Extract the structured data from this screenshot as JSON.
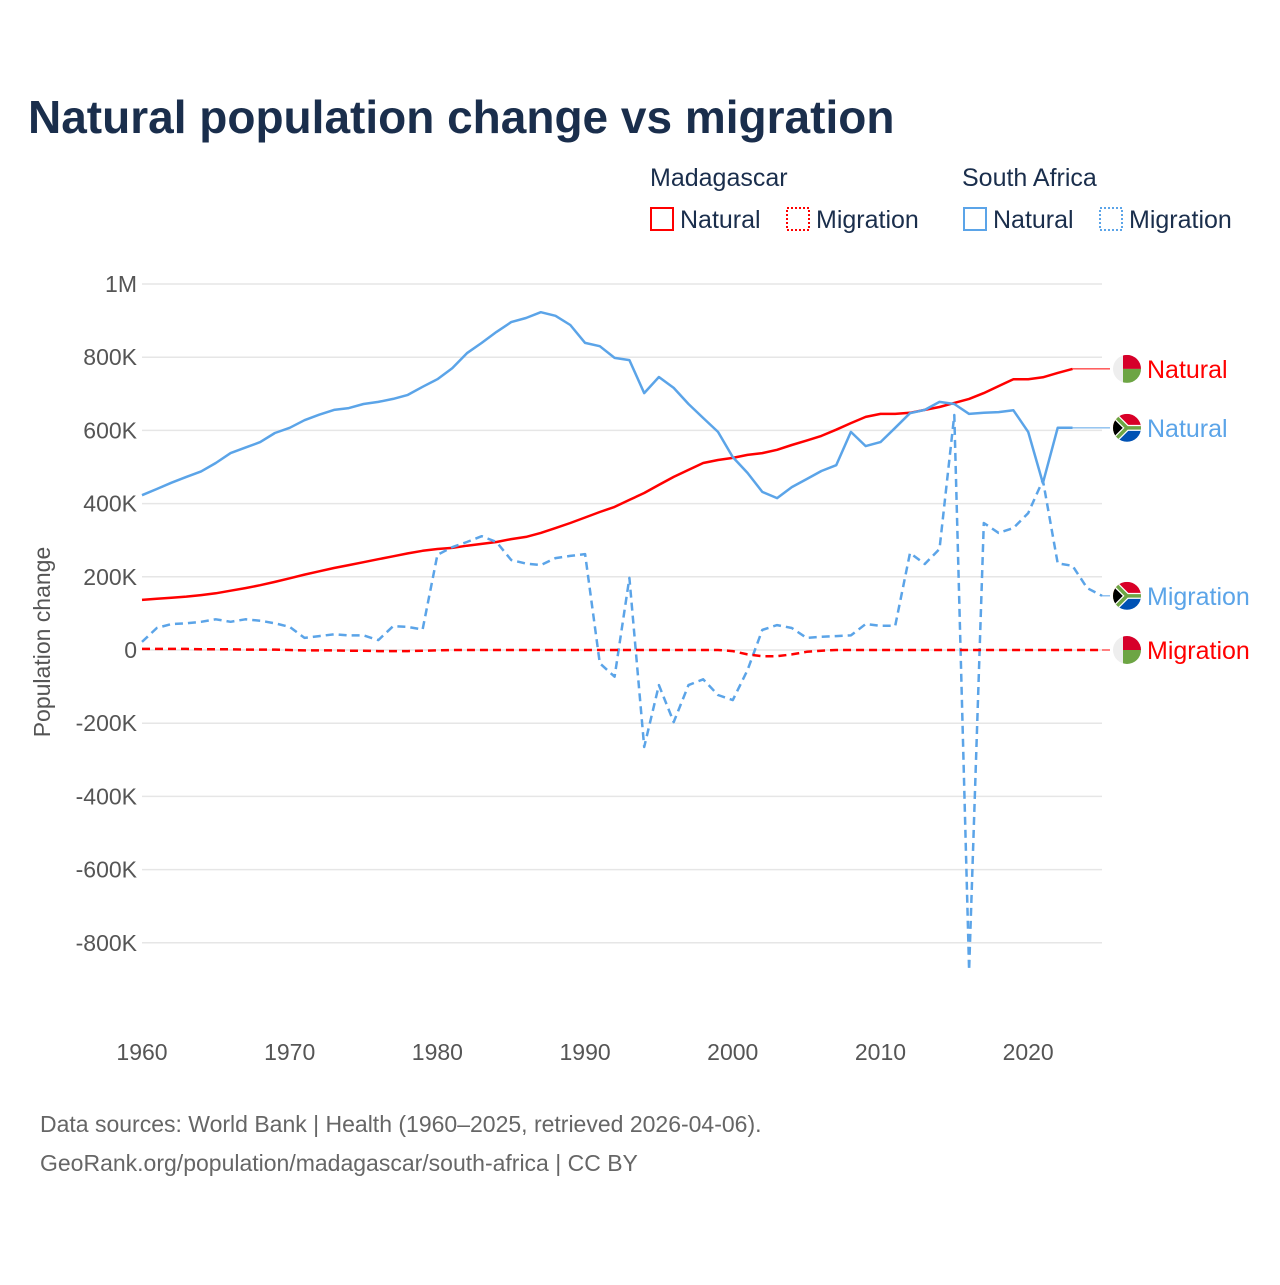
{
  "chart_data": {
    "type": "line",
    "title": "Natural population change vs migration",
    "ylabel": "Population change",
    "xlabel": "",
    "xlim": [
      1960,
      2025
    ],
    "ylim": [
      -1000000,
      1000000
    ],
    "grid": true,
    "x_ticks": [
      "1960",
      "1970",
      "1980",
      "1990",
      "2000",
      "2010",
      "2020"
    ],
    "y_ticks": [
      {
        "value": 1000000,
        "label": "1M"
      },
      {
        "value": 800000,
        "label": "800K"
      },
      {
        "value": 600000,
        "label": "600K"
      },
      {
        "value": 400000,
        "label": "400K"
      },
      {
        "value": 200000,
        "label": "200K"
      },
      {
        "value": 0,
        "label": "0"
      },
      {
        "value": -200000,
        "label": "-200K"
      },
      {
        "value": -400000,
        "label": "-400K"
      },
      {
        "value": -600000,
        "label": "-600K"
      },
      {
        "value": -800000,
        "label": "-800K"
      }
    ],
    "legend": {
      "placement": "top-right",
      "groups": [
        {
          "country": "Madagascar",
          "natural": "Natural",
          "migration": "Migration"
        },
        {
          "country": "South Africa",
          "natural": "Natural",
          "migration": "Migration"
        }
      ]
    },
    "series": [
      {
        "name": "Madagascar Natural",
        "label": "Natural",
        "color": "#ff0000",
        "dash": false,
        "flag": "madagascar",
        "start": 1960,
        "values": [
          137,
          140,
          143,
          146,
          150,
          155,
          162,
          169,
          177,
          186,
          196,
          206,
          215,
          224,
          232,
          240,
          248,
          256,
          264,
          271,
          276,
          279,
          285,
          290,
          295,
          303,
          309,
          320,
          333,
          347,
          362,
          377,
          391,
          410,
          429,
          451,
          473,
          492,
          511,
          519,
          525,
          533,
          538,
          547,
          560,
          572,
          585,
          602,
          620,
          637,
          645,
          645,
          648,
          656,
          664,
          675,
          686,
          702,
          721,
          740,
          740,
          745,
          757,
          768
        ]
      },
      {
        "name": "South Africa Natural",
        "label": "Natural",
        "color": "#5ba4e8",
        "dash": false,
        "flag": "south-africa",
        "start": 1960,
        "values": [
          423,
          440,
          457,
          473,
          488,
          511,
          538,
          553,
          568,
          593,
          607,
          628,
          643,
          656,
          661,
          672,
          678,
          686,
          697,
          719,
          740,
          770,
          811,
          839,
          869,
          896,
          907,
          923,
          913,
          888,
          839,
          830,
          798,
          792,
          702,
          746,
          716,
          672,
          634,
          596,
          527,
          484,
          432,
          415,
          445,
          467,
          489,
          505,
          596,
          557,
          568,
          607,
          647,
          656,
          678,
          672,
          645,
          648,
          650,
          655,
          596,
          456,
          607,
          607
        ]
      },
      {
        "name": "South Africa Migration",
        "label": "Migration",
        "color": "#5ba4e8",
        "dash": true,
        "flag": "south-africa",
        "start": 1960,
        "values": [
          22,
          60,
          71,
          73,
          77,
          84,
          77,
          84,
          80,
          73,
          63,
          33,
          38,
          43,
          40,
          40,
          27,
          65,
          63,
          56,
          260,
          281,
          295,
          311,
          295,
          246,
          236,
          232,
          251,
          257,
          262,
          -36,
          -73,
          197,
          -265,
          -96,
          -197,
          -96,
          -80,
          -123,
          -137,
          -55,
          55,
          68,
          60,
          33,
          36,
          38,
          40,
          71,
          66,
          66,
          265,
          235,
          276,
          642,
          -875,
          347,
          320,
          333,
          374,
          464,
          237,
          230,
          169,
          148
        ]
      },
      {
        "name": "Madagascar Migration",
        "label": "Migration",
        "color": "#ff0000",
        "dash": true,
        "flag": "madagascar",
        "start": 1960,
        "values": [
          3,
          3,
          3,
          3,
          2,
          2,
          2,
          1,
          1,
          1,
          0,
          -1,
          -1,
          -1,
          -2,
          -2,
          -3,
          -3,
          -3,
          -2,
          -1,
          0,
          0,
          0,
          0,
          0,
          0,
          0,
          0,
          0,
          0,
          0,
          0,
          0,
          0,
          0,
          0,
          0,
          0,
          0,
          -3,
          -12,
          -17,
          -17,
          -12,
          -5,
          -2,
          0,
          0,
          0,
          0,
          0,
          0,
          0,
          0,
          0,
          0,
          0,
          0,
          0,
          0,
          0,
          0,
          0,
          0,
          0
        ]
      }
    ],
    "value_units": "thousands"
  },
  "source": {
    "line1": "Data sources: World Bank | Health (1960–2025, retrieved 2026-04-06).",
    "line2": "GeoRank.org/population/madagascar/south-africa | CC BY"
  }
}
